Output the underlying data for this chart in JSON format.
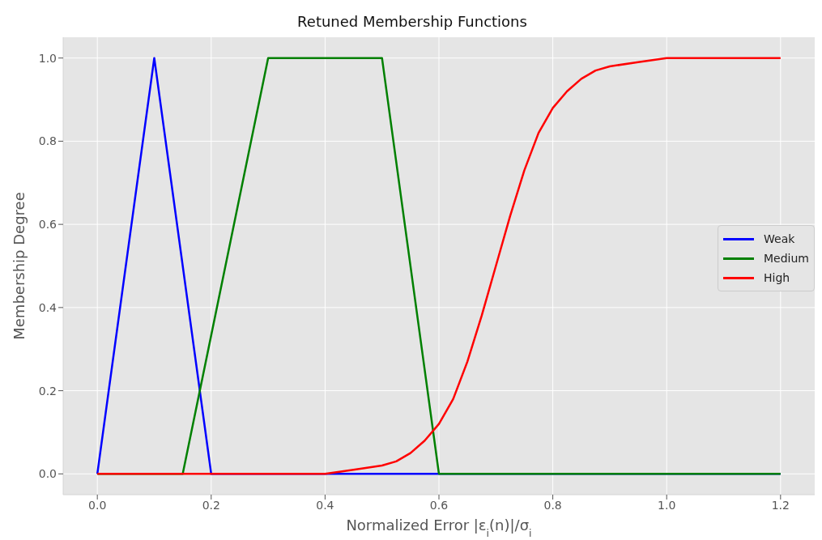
{
  "chart_data": {
    "type": "line",
    "title": "Retuned Membership Functions",
    "xlabel": "Normalized Error |ε$_{i}$(n)|/σ$_{i}$",
    "ylabel": "Membership Degree",
    "xlim": [
      -0.06,
      1.26
    ],
    "ylim": [
      -0.05,
      1.05
    ],
    "xticks": [
      {
        "value": 0,
        "label": "0.0"
      },
      {
        "value": 0.2,
        "label": "0.2"
      },
      {
        "value": 0.4,
        "label": "0.4"
      },
      {
        "value": 0.6,
        "label": "0.6"
      },
      {
        "value": 0.8,
        "label": "0.8"
      },
      {
        "value": 1,
        "label": "1.0"
      },
      {
        "value": 1.2,
        "label": "1.2"
      }
    ],
    "yticks": [
      {
        "value": 0,
        "label": "0.0"
      },
      {
        "value": 0.2,
        "label": "0.2"
      },
      {
        "value": 0.4,
        "label": "0.4"
      },
      {
        "value": 0.6,
        "label": "0.6"
      },
      {
        "value": 0.8,
        "label": "0.8"
      },
      {
        "value": 1,
        "label": "1.0"
      }
    ],
    "grid": true,
    "legend": "right",
    "marker": "none",
    "line_style": "solid",
    "series": [
      {
        "name": "Weak",
        "color": "#0000ff",
        "x": [
          0,
          0.1,
          0.2,
          1.2
        ],
        "values": [
          0,
          1,
          0,
          0
        ]
      },
      {
        "name": "Medium",
        "color": "#008000",
        "x": [
          0,
          0.15,
          0.3,
          0.5,
          0.6,
          1.2
        ],
        "values": [
          0,
          0,
          1,
          1,
          0,
          0
        ]
      },
      {
        "name": "High",
        "color": "#ff0000",
        "x": [
          0,
          0.2,
          0.3,
          0.4,
          0.45,
          0.5,
          0.525,
          0.55,
          0.575,
          0.6,
          0.625,
          0.65,
          0.675,
          0.7,
          0.725,
          0.75,
          0.775,
          0.8,
          0.825,
          0.85,
          0.875,
          0.9,
          0.95,
          1.0,
          1.1,
          1.2
        ],
        "values": [
          0,
          0,
          0,
          0,
          0.01,
          0.02,
          0.03,
          0.05,
          0.08,
          0.12,
          0.18,
          0.27,
          0.38,
          0.5,
          0.62,
          0.73,
          0.82,
          0.88,
          0.92,
          0.95,
          0.97,
          0.98,
          0.99,
          1,
          1,
          1
        ]
      }
    ]
  }
}
